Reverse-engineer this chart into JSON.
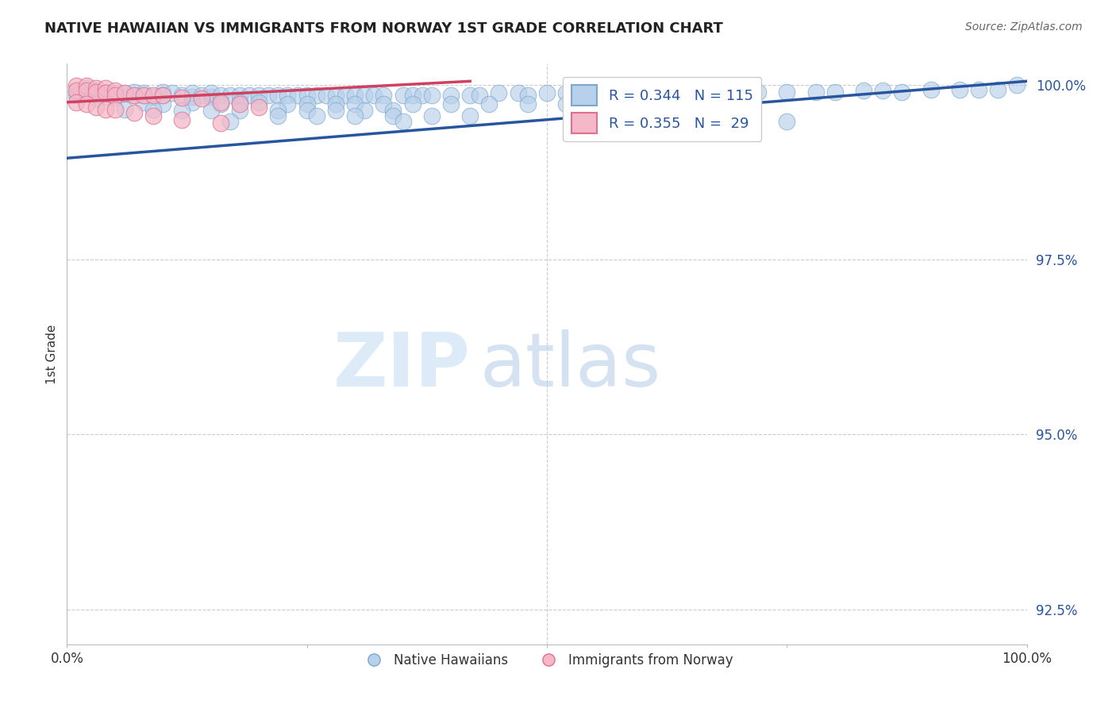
{
  "title": "NATIVE HAWAIIAN VS IMMIGRANTS FROM NORWAY 1ST GRADE CORRELATION CHART",
  "source": "Source: ZipAtlas.com",
  "ylabel": "1st Grade",
  "xlim": [
    0.0,
    1.0
  ],
  "ylim": [
    0.92,
    1.003
  ],
  "yticks": [
    0.925,
    0.95,
    0.975,
    1.0
  ],
  "ytick_labels": [
    "92.5%",
    "95.0%",
    "97.5%",
    "100.0%"
  ],
  "blue_R": 0.344,
  "blue_N": 115,
  "pink_R": 0.355,
  "pink_N": 29,
  "blue_color": "#b8d0ea",
  "blue_edge_color": "#7aa8d0",
  "pink_color": "#f4b8c8",
  "pink_edge_color": "#e07090",
  "blue_line_color": "#2855a0",
  "pink_line_color": "#d04060",
  "watermark_zip": "ZIP",
  "watermark_atlas": "atlas",
  "legend1_label": "Native Hawaiians",
  "legend2_label": "Immigrants from Norway",
  "blue_line_x0": 0.0,
  "blue_line_y0": 0.9895,
  "blue_line_x1": 1.0,
  "blue_line_y1": 1.0005,
  "pink_line_x0": 0.0,
  "pink_line_y0": 0.9975,
  "pink_line_x1": 0.42,
  "pink_line_y1": 1.0005,
  "blue_scatter_x": [
    0.01,
    0.01,
    0.02,
    0.02,
    0.03,
    0.03,
    0.03,
    0.04,
    0.04,
    0.05,
    0.05,
    0.06,
    0.07,
    0.07,
    0.08,
    0.08,
    0.09,
    0.1,
    0.1,
    0.11,
    0.12,
    0.13,
    0.13,
    0.14,
    0.15,
    0.15,
    0.16,
    0.17,
    0.18,
    0.19,
    0.2,
    0.21,
    0.22,
    0.23,
    0.24,
    0.25,
    0.26,
    0.27,
    0.28,
    0.29,
    0.3,
    0.31,
    0.32,
    0.33,
    0.35,
    0.36,
    0.37,
    0.38,
    0.4,
    0.42,
    0.43,
    0.45,
    0.47,
    0.48,
    0.5,
    0.52,
    0.55,
    0.57,
    0.6,
    0.62,
    0.65,
    0.67,
    0.7,
    0.72,
    0.75,
    0.78,
    0.8,
    0.83,
    0.85,
    0.87,
    0.9,
    0.93,
    0.95,
    0.97,
    0.99,
    0.08,
    0.1,
    0.13,
    0.16,
    0.18,
    0.2,
    0.23,
    0.25,
    0.28,
    0.3,
    0.33,
    0.36,
    0.4,
    0.44,
    0.48,
    0.52,
    0.55,
    0.58,
    0.6,
    0.63,
    0.06,
    0.09,
    0.12,
    0.15,
    0.18,
    0.22,
    0.25,
    0.28,
    0.31,
    0.34,
    0.22,
    0.26,
    0.3,
    0.34,
    0.38,
    0.42,
    0.17,
    0.35,
    0.55,
    0.75
  ],
  "blue_scatter_y": [
    0.999,
    0.9985,
    0.9995,
    0.9988,
    0.9992,
    0.9985,
    0.998,
    0.999,
    0.9983,
    0.9988,
    0.9982,
    0.9987,
    0.9985,
    0.999,
    0.9985,
    0.9988,
    0.9983,
    0.999,
    0.9985,
    0.9988,
    0.9985,
    0.9983,
    0.9988,
    0.9985,
    0.9983,
    0.9988,
    0.9985,
    0.9985,
    0.9985,
    0.9985,
    0.9985,
    0.9985,
    0.9985,
    0.9985,
    0.9985,
    0.9985,
    0.9985,
    0.9985,
    0.9985,
    0.9985,
    0.9985,
    0.9985,
    0.9985,
    0.9985,
    0.9985,
    0.9985,
    0.9985,
    0.9985,
    0.9985,
    0.9985,
    0.9985,
    0.9988,
    0.9988,
    0.9985,
    0.9988,
    0.9988,
    0.9988,
    0.9988,
    0.9988,
    0.9988,
    0.9988,
    0.9988,
    0.999,
    0.999,
    0.999,
    0.999,
    0.999,
    0.9992,
    0.9992,
    0.999,
    0.9993,
    0.9993,
    0.9993,
    0.9993,
    1.0,
    0.9975,
    0.9972,
    0.9975,
    0.9972,
    0.9975,
    0.9975,
    0.9972,
    0.9972,
    0.9972,
    0.9972,
    0.9972,
    0.9972,
    0.9972,
    0.9972,
    0.9972,
    0.9972,
    0.9975,
    0.9975,
    0.9975,
    0.9975,
    0.9965,
    0.9965,
    0.9963,
    0.9963,
    0.9963,
    0.9963,
    0.9963,
    0.9963,
    0.9963,
    0.9963,
    0.9955,
    0.9955,
    0.9955,
    0.9955,
    0.9955,
    0.9955,
    0.9948,
    0.9948,
    0.9948,
    0.9948
  ],
  "pink_scatter_x": [
    0.01,
    0.01,
    0.02,
    0.02,
    0.03,
    0.03,
    0.04,
    0.04,
    0.05,
    0.05,
    0.06,
    0.07,
    0.08,
    0.09,
    0.1,
    0.12,
    0.14,
    0.16,
    0.18,
    0.2,
    0.01,
    0.02,
    0.03,
    0.04,
    0.05,
    0.07,
    0.09,
    0.12,
    0.16
  ],
  "pink_scatter_y": [
    0.9998,
    0.9992,
    0.9998,
    0.9992,
    0.9995,
    0.999,
    0.9995,
    0.9988,
    0.9992,
    0.9985,
    0.9988,
    0.9985,
    0.9985,
    0.9985,
    0.9985,
    0.9982,
    0.998,
    0.9975,
    0.9972,
    0.9968,
    0.9975,
    0.9972,
    0.9968,
    0.9965,
    0.9965,
    0.996,
    0.9955,
    0.995,
    0.9945
  ]
}
